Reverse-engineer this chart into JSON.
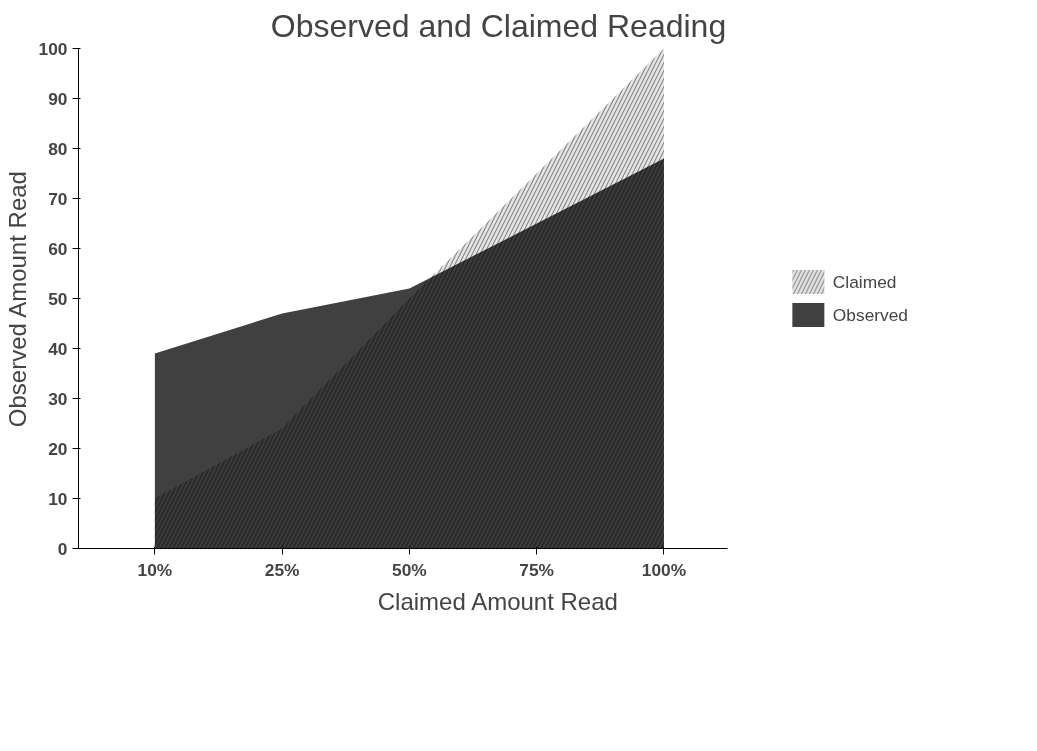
{
  "chart_data": {
    "type": "area",
    "title": "Observed and Claimed Reading",
    "xlabel": "Claimed Amount Read",
    "ylabel": "Observed Amount Read",
    "categories": [
      "10%",
      "25%",
      "50%",
      "75%",
      "100%"
    ],
    "series": [
      {
        "name": "Claimed",
        "color": "#888888",
        "values": [
          10,
          24,
          50,
          75,
          100
        ]
      },
      {
        "name": "Observed",
        "color": "#000000",
        "values": [
          39,
          47,
          52,
          65,
          78
        ]
      }
    ],
    "ylim": [
      0,
      100
    ],
    "yticks": [
      0,
      10,
      20,
      30,
      40,
      50,
      60,
      70,
      80,
      90,
      100
    ],
    "grid": false,
    "legend": "right"
  }
}
